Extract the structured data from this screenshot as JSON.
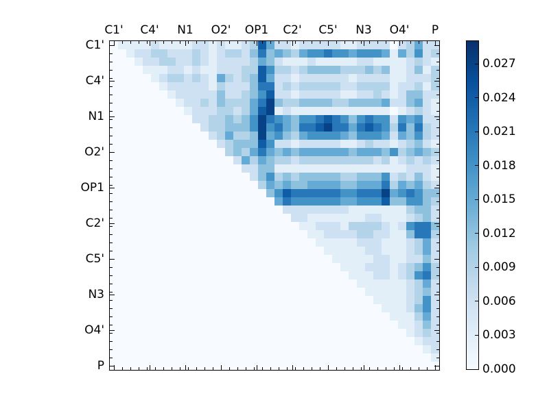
{
  "figure": {
    "background": "#ffffff",
    "title": ""
  },
  "chart_data": {
    "type": "heatmap",
    "title": "",
    "description": "Upper-triangular pairwise coupling matrix between nucleic-acid atoms, Blues colormap",
    "x_tick_labels": [
      "C1'",
      "C4'",
      "N1",
      "O2'",
      "OP1",
      "C2'",
      "C5'",
      "N3",
      "O4'",
      "P"
    ],
    "y_tick_labels": [
      "C1'",
      "C4'",
      "N1",
      "O2'",
      "OP1",
      "C2'",
      "C5'",
      "N3",
      "O4'",
      "P"
    ],
    "matrix_size": 40,
    "labels_every_n_cells": 4.333,
    "level_value_step": 0.003,
    "vmin": 0.0,
    "vmax": 0.029,
    "colormap": "Blues",
    "colormap_stops": [
      "#f7fbff",
      "#deebf7",
      "#c6dbef",
      "#9ecae1",
      "#6baed6",
      "#4292c6",
      "#2171b5",
      "#08519c",
      "#08306b"
    ],
    "background_value_color": "#f7fbff",
    "colorbar": {
      "tick_labels": [
        "0.000",
        "0.003",
        "0.006",
        "0.009",
        "0.012",
        "0.015",
        "0.018",
        "0.021",
        "0.024",
        "0.027"
      ],
      "tick_values": [
        0.0,
        0.003,
        0.006,
        0.009,
        0.012,
        0.015,
        0.018,
        0.021,
        0.024,
        0.027
      ],
      "orientation": "vertical",
      "dark_at": "top"
    },
    "matrix_levels": [
      "0111121111221211238522122222112222023522",
      "0012233222321233247454356676656665153623",
      "0001223322321222235421112111112211112321",
      "0000111221211222338633234444333434112413",
      "0000012332321532348522122222212222112223",
      "0000001222221322247723233333223333122313",
      "0000000122222422346822122222112232124422",
      "0000000012232433357943344443344445224521",
      "0000000001222332358912111111111111012321",
      "0000000000223343469765466787646766265622",
      "0000000000023344469675477897757876374732",
      "0000000000002353349564356666546665254632",
      "0000000000000234448622122222112322123421",
      "0000000000000034357545455555545554634543",
      "0000000000000002535433233333333323123232",
      "0000000000000000224411111111111111112221",
      "0000000000000000024634344444334446232421",
      "0000000000000000003545445555445557354532",
      "0000000000000000000468777777667779567644",
      "0000000000000000000057666666556668446643",
      "0000000000000000000002222222211111113442",
      "0000000000000000000000221111111221112342",
      "0000000000000000000000011222133332126774",
      "0000000000000000000000001122223322114773",
      "0000000000000000000000000111112221112352",
      "0000000000000000000000000011111221112352",
      "0000000000000000000000000001111122112242",
      "0000000000000000000000000000111222123463",
      "0000000000000000000000000000011122123673",
      "0000000000000000000000000000001111112352",
      "0000000000000000000000000000000111112342",
      "0000000000000000000000000000000011112362",
      "0000000000000000000000000000000001112462",
      "0000000000000000000000000000000000111352",
      "0000000000000000000000000000000000011242",
      "0000000000000000000000000000000000001232",
      "0000000000000000000000000000000000000122",
      "0000000000000000000000000000000000000012",
      "0000000000000000000000000000000000000001",
      "0000000000000000000000000000000000000000"
    ]
  }
}
